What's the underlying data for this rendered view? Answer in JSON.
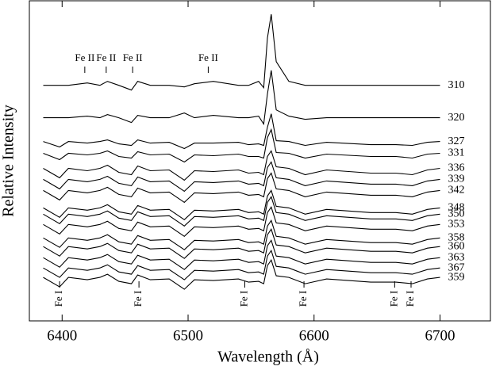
{
  "chart_data": {
    "type": "line",
    "xlabel": "Wavelength  (Å)",
    "ylabel": "Relative Intensity",
    "xlim": [
      6374,
      6740
    ],
    "ylim": [
      0,
      40.5
    ],
    "xticks": [
      6400,
      6500,
      6600,
      6700
    ],
    "color": "#000000",
    "x": [
      6385,
      6398,
      6405,
      6420,
      6430,
      6436,
      6445,
      6455,
      6460,
      6470,
      6485,
      6497,
      6505,
      6520,
      6540,
      6548,
      6556,
      6560,
      6563,
      6566,
      6570,
      6580,
      6593,
      6610,
      6645,
      6665,
      6678,
      6690,
      6700
    ],
    "series": [
      {
        "name": "310",
        "values": [
          29.8,
          29.8,
          29.8,
          30.1,
          29.8,
          30.3,
          29.8,
          29.2,
          30.3,
          29.8,
          29.8,
          29.6,
          30.0,
          30.3,
          29.8,
          29.8,
          30.3,
          29.5,
          35.8,
          38.8,
          32.8,
          30.3,
          29.8,
          29.8,
          29.8,
          29.8,
          29.8,
          29.8,
          29.8
        ]
      },
      {
        "name": "320",
        "values": [
          25.7,
          25.7,
          25.7,
          25.9,
          25.7,
          26.1,
          25.7,
          25.1,
          26.0,
          25.7,
          25.7,
          26.3,
          25.7,
          26.0,
          25.7,
          25.7,
          25.9,
          24.9,
          28.7,
          31.7,
          26.7,
          25.9,
          25.5,
          25.7,
          25.7,
          25.7,
          25.7,
          25.7,
          25.7
        ]
      },
      {
        "name": "327",
        "values": [
          22.7,
          22.0,
          22.7,
          22.5,
          22.7,
          22.9,
          22.4,
          22.2,
          22.9,
          22.5,
          22.6,
          21.8,
          22.5,
          22.5,
          22.6,
          22.3,
          22.4,
          22.2,
          24.5,
          26.2,
          22.8,
          22.7,
          22.2,
          22.6,
          22.3,
          22.3,
          22.2,
          22.6,
          22.7
        ]
      },
      {
        "name": "331",
        "values": [
          21.2,
          20.4,
          21.2,
          21.0,
          21.2,
          21.5,
          20.8,
          20.6,
          21.4,
          21.0,
          21.1,
          20.1,
          21.0,
          20.9,
          21.1,
          20.8,
          20.8,
          20.6,
          23.2,
          24.2,
          21.3,
          21.2,
          20.6,
          21.1,
          20.8,
          20.8,
          20.6,
          21.1,
          21.2
        ]
      },
      {
        "name": "336",
        "values": [
          19.3,
          18.1,
          19.3,
          19.0,
          19.3,
          19.7,
          18.8,
          18.5,
          19.6,
          19.0,
          19.1,
          17.8,
          19.0,
          18.9,
          19.1,
          18.7,
          18.8,
          18.5,
          20.8,
          21.5,
          19.5,
          19.3,
          18.5,
          19.1,
          18.7,
          18.7,
          18.5,
          19.1,
          19.3
        ]
      },
      {
        "name": "339",
        "values": [
          17.9,
          16.7,
          17.9,
          17.6,
          17.9,
          18.3,
          17.4,
          17.1,
          18.2,
          17.6,
          17.7,
          16.4,
          17.6,
          17.5,
          17.7,
          17.3,
          17.4,
          17.1,
          19.4,
          20.1,
          18.1,
          17.9,
          17.1,
          17.7,
          17.3,
          17.3,
          17.1,
          17.7,
          17.9
        ]
      },
      {
        "name": "342",
        "values": [
          16.5,
          15.3,
          16.5,
          16.2,
          16.5,
          16.9,
          16.0,
          15.7,
          16.8,
          16.2,
          16.3,
          15.0,
          16.2,
          16.1,
          16.3,
          15.9,
          16.0,
          15.7,
          18.0,
          18.7,
          16.7,
          16.5,
          15.7,
          16.3,
          15.9,
          15.9,
          15.7,
          16.3,
          16.5
        ]
      },
      {
        "name": "348",
        "values": [
          14.3,
          13.1,
          14.3,
          14.0,
          14.3,
          14.7,
          13.8,
          13.5,
          14.6,
          14.0,
          14.1,
          12.8,
          14.0,
          13.9,
          14.1,
          13.7,
          13.8,
          13.5,
          15.8,
          16.5,
          14.5,
          14.3,
          13.5,
          14.1,
          13.7,
          13.7,
          13.5,
          14.1,
          14.3
        ]
      },
      {
        "name": "350",
        "values": [
          13.5,
          12.3,
          13.5,
          13.2,
          13.5,
          13.9,
          13.0,
          12.7,
          13.8,
          13.2,
          13.3,
          12.0,
          13.2,
          13.1,
          13.3,
          12.9,
          13.0,
          12.7,
          15.0,
          15.7,
          13.7,
          13.5,
          12.7,
          13.3,
          12.9,
          12.9,
          12.7,
          13.3,
          13.5
        ]
      },
      {
        "name": "353",
        "values": [
          12.2,
          11.0,
          12.2,
          11.9,
          12.2,
          12.6,
          11.7,
          11.4,
          12.5,
          11.9,
          12.0,
          10.7,
          11.9,
          11.8,
          12.0,
          11.6,
          11.7,
          11.4,
          13.7,
          14.4,
          12.4,
          12.2,
          11.4,
          12.0,
          11.6,
          11.6,
          11.4,
          12.0,
          12.2
        ]
      },
      {
        "name": "358",
        "values": [
          10.5,
          9.3,
          10.5,
          10.2,
          10.5,
          10.9,
          10.0,
          9.7,
          10.8,
          10.2,
          10.3,
          9.0,
          10.2,
          10.1,
          10.3,
          9.9,
          10.0,
          9.7,
          12.0,
          12.7,
          10.7,
          10.5,
          9.7,
          10.3,
          9.9,
          9.9,
          9.7,
          10.3,
          10.5
        ]
      },
      {
        "name": "360",
        "values": [
          9.4,
          8.2,
          9.4,
          9.1,
          9.4,
          9.8,
          8.9,
          8.6,
          9.7,
          9.1,
          9.2,
          7.9,
          9.1,
          9.0,
          9.2,
          8.8,
          8.9,
          8.6,
          10.9,
          11.6,
          9.6,
          9.4,
          8.6,
          9.2,
          8.8,
          8.8,
          8.6,
          9.2,
          9.4
        ]
      },
      {
        "name": "363",
        "values": [
          8.0,
          6.8,
          8.0,
          7.7,
          8.0,
          8.4,
          7.5,
          7.2,
          8.3,
          7.7,
          7.8,
          6.5,
          7.7,
          7.6,
          7.8,
          7.4,
          7.5,
          7.2,
          9.5,
          10.2,
          8.2,
          8.0,
          7.2,
          7.8,
          7.4,
          7.4,
          7.2,
          7.8,
          8.0
        ]
      },
      {
        "name": "367",
        "values": [
          6.7,
          5.5,
          6.7,
          6.4,
          6.7,
          7.1,
          6.2,
          5.9,
          7.0,
          6.4,
          6.5,
          5.2,
          6.4,
          6.3,
          6.5,
          6.1,
          6.2,
          5.9,
          8.2,
          8.9,
          6.9,
          6.7,
          5.9,
          6.5,
          6.1,
          6.1,
          5.9,
          6.5,
          6.7
        ]
      },
      {
        "name": "359",
        "values": [
          5.5,
          4.3,
          5.5,
          5.2,
          5.5,
          5.9,
          5.0,
          4.7,
          5.8,
          5.2,
          5.3,
          4.0,
          5.2,
          5.1,
          5.3,
          4.9,
          5.0,
          4.7,
          7.0,
          7.7,
          5.7,
          5.5,
          4.7,
          5.3,
          4.9,
          4.9,
          4.7,
          5.3,
          5.5
        ]
      }
    ],
    "annotations_top": [
      {
        "text": "Fe II",
        "x": 6418
      },
      {
        "text": "Fe II",
        "x": 6435
      },
      {
        "text": "Fe II",
        "x": 6456
      },
      {
        "text": "Fe II",
        "x": 6516
      }
    ],
    "annotations_bottom": [
      {
        "text": "Fe I",
        "x": 6398
      },
      {
        "text": "Fe I",
        "x": 6461
      },
      {
        "text": "Fe I",
        "x": 6545
      },
      {
        "text": "Fe I",
        "x": 6592
      },
      {
        "text": "Fe I",
        "x": 6664
      },
      {
        "text": "Fe I",
        "x": 6677
      }
    ]
  }
}
